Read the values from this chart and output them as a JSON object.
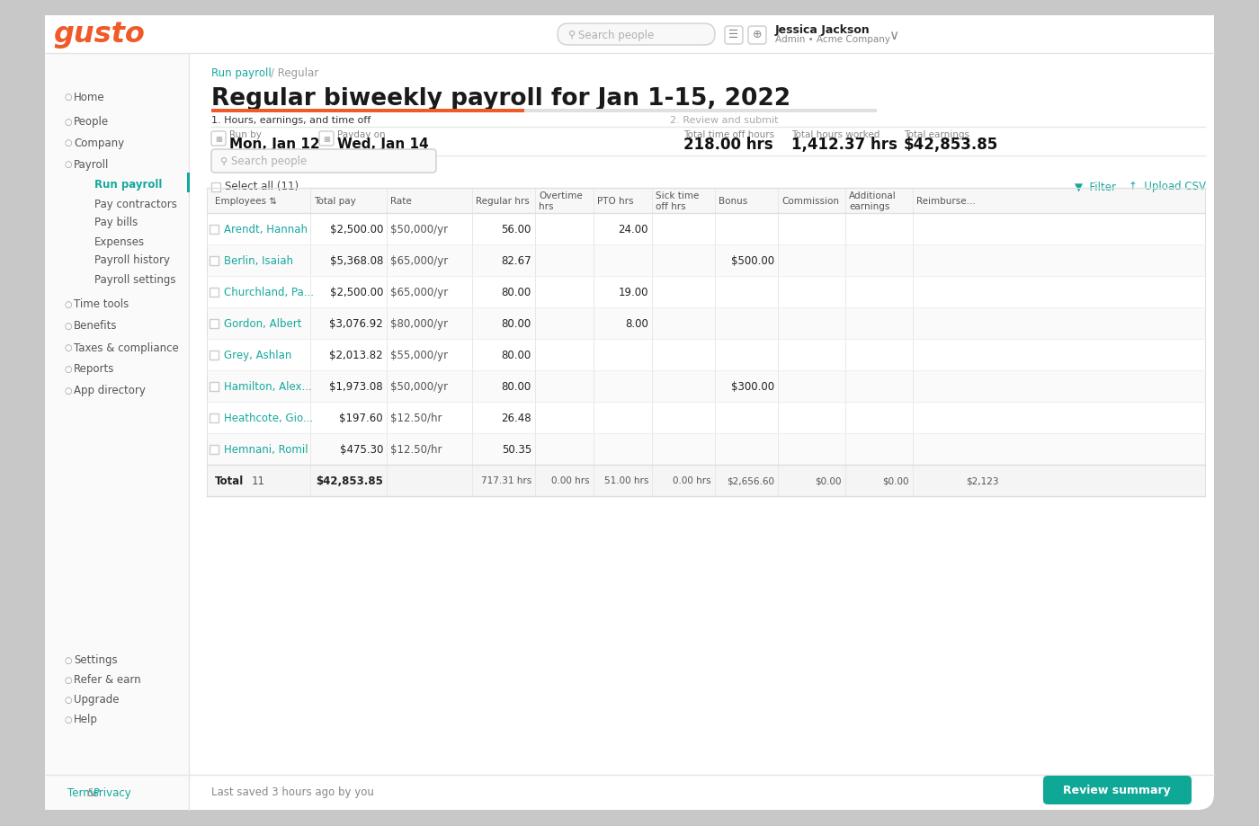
{
  "bg_color": "#c8c8c8",
  "card_bg": "#ffffff",
  "gusto_color": "#f05a28",
  "teal_color": "#16a89e",
  "sidebar_text_color": "#4a4a4a",
  "title": "Regular biweekly payroll for Jan 1-15, 2022",
  "run_by_label": "Run by",
  "run_by_value": "Mon, Jan 12",
  "payday_label": "Payday on",
  "payday_value": "Wed, Jan 14",
  "total_time_off_label": "Total time off hours",
  "total_time_off_value": "218.00 hrs",
  "total_hours_label": "Total hours worked",
  "total_hours_value": "1,412.37 hrs",
  "total_earnings_label": "Total earnings",
  "total_earnings_value": "$42,853.85",
  "step1": "1. Hours, earnings, and time off",
  "step2": "2. Review and submit",
  "select_all_label": "Select all (11)",
  "filter_label": "Filter",
  "upload_csv_label": "Upload CSV",
  "search_placeholder": "Search people",
  "last_saved": "Last saved 3 hours ago by you",
  "review_btn": "Review summary",
  "nav_items": [
    {
      "label": "Home",
      "active": false,
      "indent": false,
      "has_icon": true
    },
    {
      "label": "People",
      "active": false,
      "indent": false,
      "has_icon": true
    },
    {
      "label": "Company",
      "active": false,
      "indent": false,
      "has_icon": true
    },
    {
      "label": "Payroll",
      "active": false,
      "indent": false,
      "has_icon": true
    },
    {
      "label": "Run payroll",
      "active": true,
      "indent": true,
      "has_icon": false
    },
    {
      "label": "Pay contractors",
      "active": false,
      "indent": true,
      "has_icon": false
    },
    {
      "label": "Pay bills",
      "active": false,
      "indent": true,
      "has_icon": false
    },
    {
      "label": "Expenses",
      "active": false,
      "indent": true,
      "has_icon": false
    },
    {
      "label": "Payroll history",
      "active": false,
      "indent": true,
      "has_icon": false
    },
    {
      "label": "Payroll settings",
      "active": false,
      "indent": true,
      "has_icon": false
    },
    {
      "label": "Time tools",
      "active": false,
      "indent": false,
      "has_icon": true
    },
    {
      "label": "Benefits",
      "active": false,
      "indent": false,
      "has_icon": true
    },
    {
      "label": "Taxes & compliance",
      "active": false,
      "indent": false,
      "has_icon": true
    },
    {
      "label": "Reports",
      "active": false,
      "indent": false,
      "has_icon": true
    },
    {
      "label": "App directory",
      "active": false,
      "indent": false,
      "has_icon": true
    }
  ],
  "bottom_nav": [
    {
      "label": "Settings",
      "has_icon": true
    },
    {
      "label": "Refer & earn",
      "has_icon": true
    },
    {
      "label": "Upgrade",
      "has_icon": true
    },
    {
      "label": "Help",
      "has_icon": true
    }
  ],
  "table_rows": [
    {
      "name": "Arendt, Hannah",
      "total_pay": "$2,500.00",
      "rate": "$50,000/yr",
      "regular_hrs": "56.00",
      "overtime": "",
      "pto": "24.00",
      "sick": "",
      "bonus": "",
      "commission": "",
      "additional": "",
      "reimburse": ""
    },
    {
      "name": "Berlin, Isaiah",
      "total_pay": "$5,368.08",
      "rate": "$65,000/yr",
      "regular_hrs": "82.67",
      "overtime": "",
      "pto": "",
      "sick": "",
      "bonus": "$500.00",
      "commission": "",
      "additional": "",
      "reimburse": ""
    },
    {
      "name": "Churchland, Pa...",
      "total_pay": "$2,500.00",
      "rate": "$65,000/yr",
      "regular_hrs": "80.00",
      "overtime": "",
      "pto": "19.00",
      "sick": "",
      "bonus": "",
      "commission": "",
      "additional": "",
      "reimburse": ""
    },
    {
      "name": "Gordon, Albert",
      "total_pay": "$3,076.92",
      "rate": "$80,000/yr",
      "regular_hrs": "80.00",
      "overtime": "",
      "pto": "8.00",
      "sick": "",
      "bonus": "",
      "commission": "",
      "additional": "",
      "reimburse": ""
    },
    {
      "name": "Grey, Ashlan",
      "total_pay": "$2,013.82",
      "rate": "$55,000/yr",
      "regular_hrs": "80.00",
      "overtime": "",
      "pto": "",
      "sick": "",
      "bonus": "",
      "commission": "",
      "additional": "",
      "reimburse": ""
    },
    {
      "name": "Hamilton, Alex...",
      "total_pay": "$1,973.08",
      "rate": "$50,000/yr",
      "regular_hrs": "80.00",
      "overtime": "",
      "pto": "",
      "sick": "",
      "bonus": "$300.00",
      "commission": "",
      "additional": "",
      "reimburse": ""
    },
    {
      "name": "Heathcote, Gio...",
      "total_pay": "$197.60",
      "rate": "$12.50/hr",
      "regular_hrs": "26.48",
      "overtime": "",
      "pto": "",
      "sick": "",
      "bonus": "",
      "commission": "",
      "additional": "",
      "reimburse": ""
    },
    {
      "name": "Hemnani, Romil",
      "total_pay": "$475.30",
      "rate": "$12.50/hr",
      "regular_hrs": "50.35",
      "overtime": "",
      "pto": "",
      "sick": "",
      "bonus": "",
      "commission": "",
      "additional": "",
      "reimburse": ""
    }
  ],
  "total_row": {
    "count": "11",
    "total_pay": "$42,853.85",
    "regular_hrs": "717.31 hrs",
    "overtime": "0.00 hrs",
    "pto": "51.00 hrs",
    "sick": "0.00 hrs",
    "bonus": "$2,656.60",
    "commission": "$0.00",
    "additional": "$0.00",
    "reimburse": "$2,123"
  },
  "user_name": "Jessica Jackson",
  "user_role": "Admin • Acme Company",
  "progress_color": "#f05a28",
  "progress_inactive_color": "#e0e0e0",
  "active_indicator_color": "#16a89e"
}
